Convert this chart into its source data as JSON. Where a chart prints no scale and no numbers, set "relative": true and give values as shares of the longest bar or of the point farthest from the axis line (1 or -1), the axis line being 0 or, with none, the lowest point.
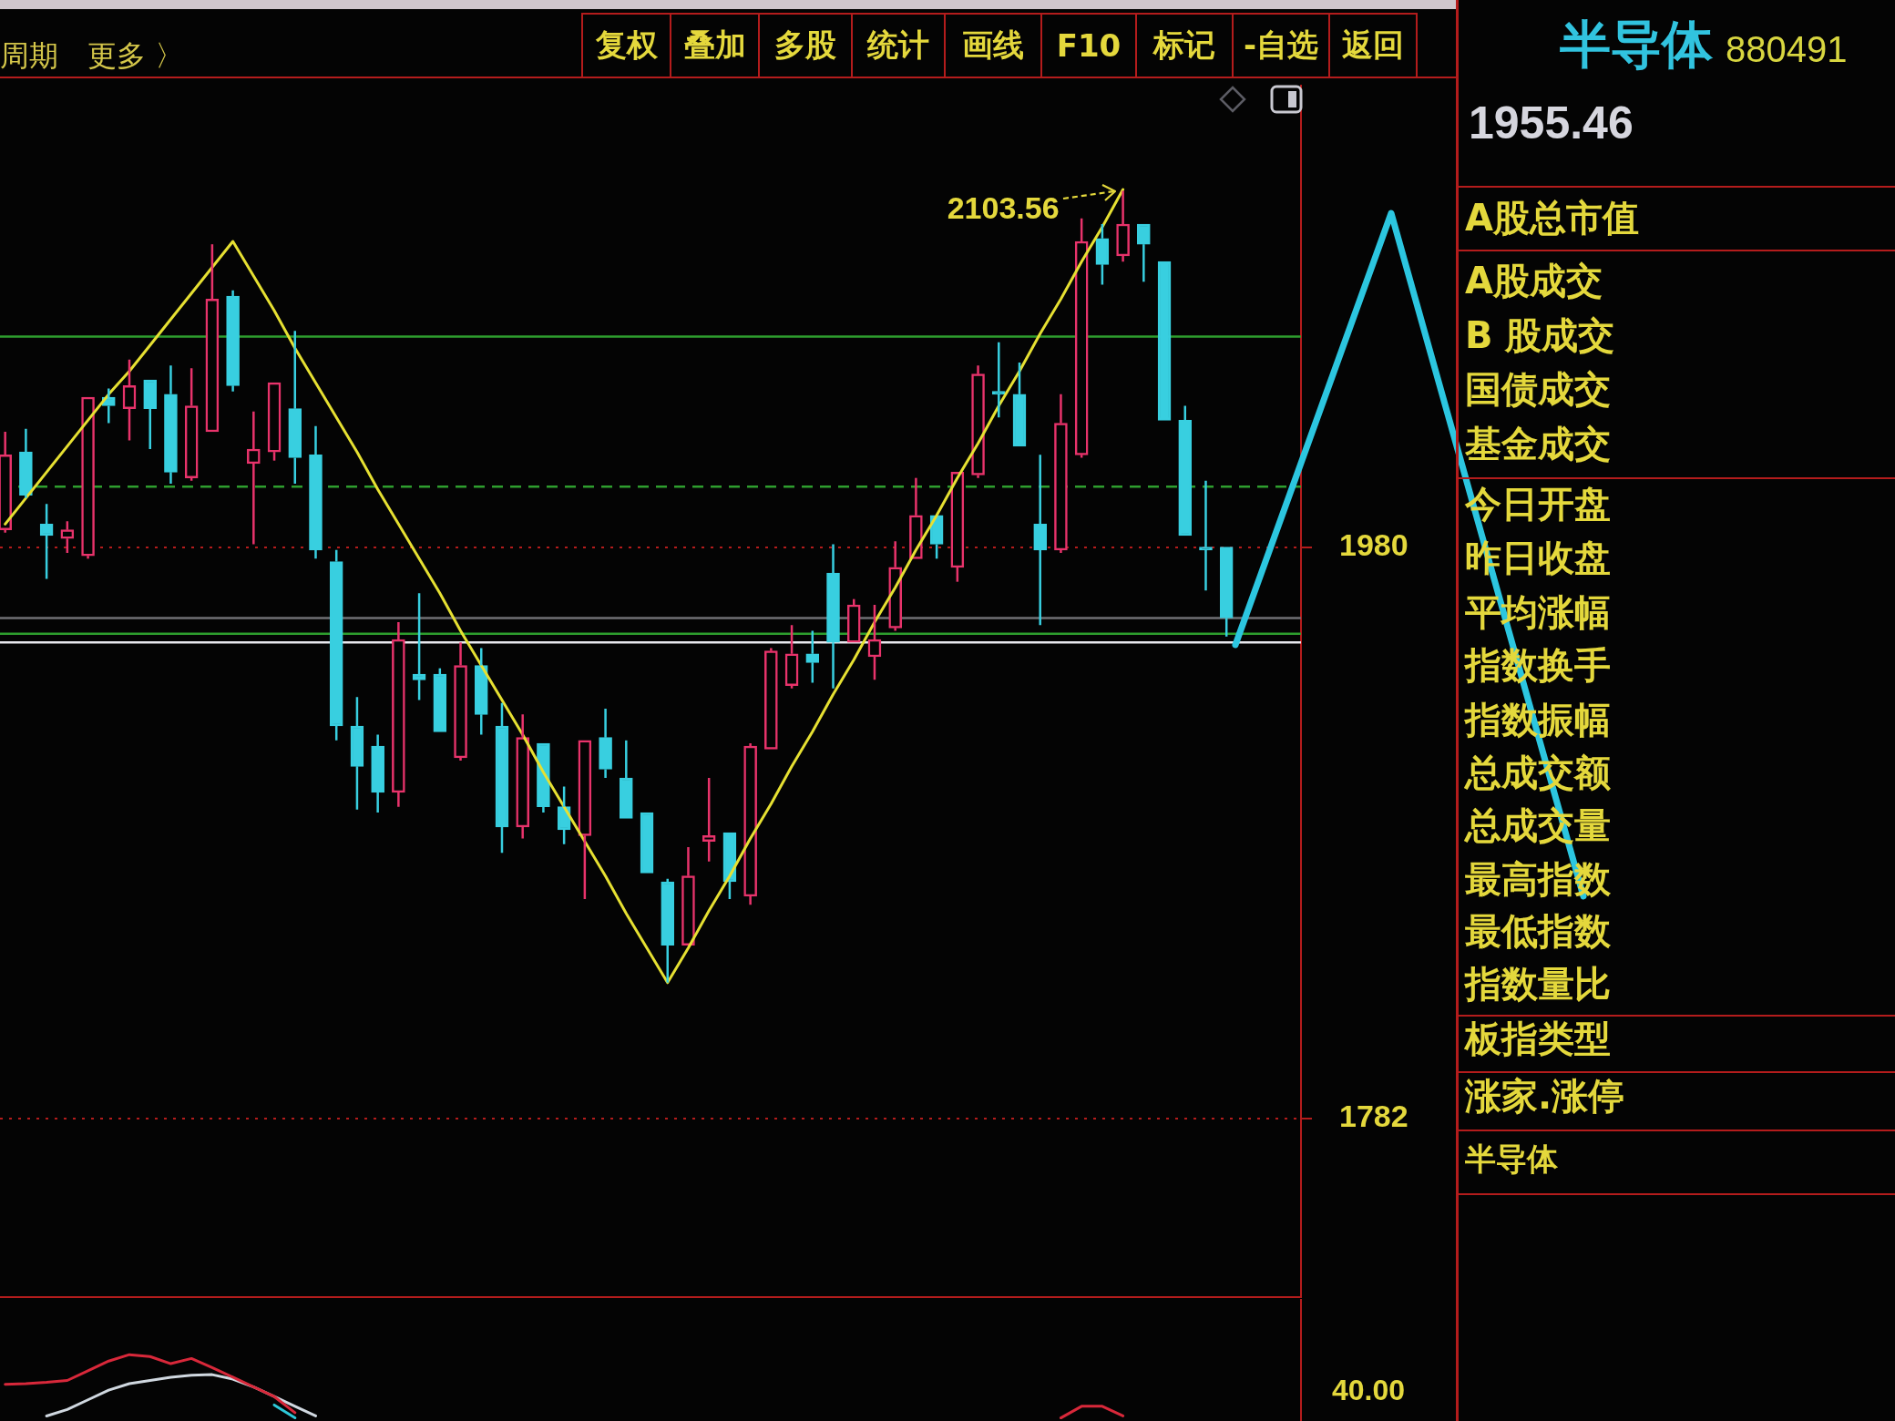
{
  "chart_data": [
    {
      "type": "candlestick",
      "categories": [
        null,
        null,
        null,
        null,
        null,
        null,
        null,
        null,
        null,
        null,
        null,
        null,
        null,
        null,
        null,
        null,
        null,
        null,
        null,
        null,
        null,
        null,
        null,
        null,
        null,
        null,
        null,
        null,
        null,
        null,
        null,
        null,
        null,
        null,
        null,
        null,
        null,
        null,
        null,
        null,
        null,
        null,
        null,
        null,
        null,
        null,
        null,
        null,
        null,
        null,
        null,
        null,
        null,
        null,
        null,
        null,
        null,
        null,
        null,
        null
      ],
      "ohlc": [
        [
          1986,
          2020,
          1985,
          2012
        ],
        [
          2013,
          2021,
          1997,
          1998
        ],
        [
          1988,
          1995,
          1969,
          1984
        ],
        [
          1983,
          1989,
          1978,
          1986
        ],
        [
          1977,
          2032,
          1976,
          2032
        ],
        [
          2032,
          2035,
          2023,
          2029
        ],
        [
          2028,
          2045,
          2017,
          2036
        ],
        [
          2038,
          2038,
          2014,
          2028
        ],
        [
          2033,
          2043,
          2002,
          2006
        ],
        [
          2004,
          2042,
          2003,
          2029
        ],
        [
          2020,
          2085,
          2020,
          2066
        ],
        [
          2067,
          2069,
          2034,
          2036
        ],
        [
          2009,
          2027,
          1981,
          2014
        ],
        [
          2013,
          2037,
          2010,
          2037
        ],
        [
          2028,
          2055,
          2002,
          2011
        ],
        [
          2012,
          2022,
          1976,
          1979
        ],
        [
          1975,
          1979,
          1913,
          1918
        ],
        [
          1918,
          1928,
          1889,
          1904
        ],
        [
          1911,
          1915,
          1888,
          1895
        ],
        [
          1895,
          1954,
          1890,
          1948
        ],
        [
          1936,
          1964,
          1927,
          1934
        ],
        [
          1936,
          1938,
          1916,
          1916
        ],
        [
          1907,
          1947,
          1906,
          1939
        ],
        [
          1939,
          1945,
          1915,
          1922
        ],
        [
          1918,
          1926,
          1874,
          1883
        ],
        [
          1883,
          1922,
          1879,
          1914
        ],
        [
          1912,
          1912,
          1888,
          1890
        ],
        [
          1890,
          1897,
          1877,
          1882
        ],
        [
          1880,
          1913,
          1858,
          1913
        ],
        [
          1914,
          1924,
          1900,
          1903
        ],
        [
          1900,
          1913,
          1886,
          1886
        ],
        [
          1888,
          1888,
          1867,
          1867
        ],
        [
          1864,
          1865,
          1829,
          1842
        ],
        [
          1842,
          1876,
          1842,
          1866
        ],
        [
          1878,
          1900,
          1871,
          1880
        ],
        [
          1881,
          1881,
          1858,
          1864
        ],
        [
          1859,
          1912,
          1856,
          1911
        ],
        [
          1910,
          1945,
          1910,
          1944
        ],
        [
          1932,
          1953,
          1931,
          1943
        ],
        [
          1943,
          1951,
          1933,
          1940
        ],
        [
          1971,
          1981,
          1931,
          1947
        ],
        [
          1947,
          1962,
          1947,
          1960
        ],
        [
          1942,
          1960,
          1934,
          1948
        ],
        [
          1952,
          1982,
          1951,
          1973
        ],
        [
          1976,
          2004,
          1976,
          1991
        ],
        [
          1991,
          1991,
          1976,
          1981
        ],
        [
          1973,
          2006,
          1968,
          2006
        ],
        [
          2005,
          2043,
          2004,
          2040
        ],
        [
          2034,
          2051,
          2025,
          2033
        ],
        [
          2033,
          2044,
          2015,
          2015
        ],
        [
          1988,
          2012,
          1953,
          1979
        ],
        [
          1979,
          2033,
          1978,
          2023
        ],
        [
          2012,
          2094,
          2011,
          2086
        ],
        [
          2087,
          2092,
          2071,
          2078
        ],
        [
          2081,
          2103.56,
          2079,
          2092
        ],
        [
          2092,
          2092,
          2072,
          2085
        ],
        [
          2079,
          2079,
          2024,
          2024
        ],
        [
          2024,
          2029,
          1984,
          1984
        ],
        [
          1980,
          2003,
          1965,
          1979
        ],
        [
          1980,
          1980,
          1949,
          1955.46
        ]
      ],
      "colors": [
        "#e8336b",
        "#38cfe0",
        "#38cfe0",
        "#e8336b",
        "#e8336b",
        "#38cfe0",
        "#e8336b",
        "#38cfe0",
        "#38cfe0",
        "#e8336b",
        "#e8336b",
        "#38cfe0",
        "#e8336b",
        "#e8336b",
        "#38cfe0",
        "#38cfe0",
        "#38cfe0",
        "#38cfe0",
        "#38cfe0",
        "#e8336b",
        "#38cfe0",
        "#38cfe0",
        "#e8336b",
        "#38cfe0",
        "#38cfe0",
        "#e8336b",
        "#38cfe0",
        "#38cfe0",
        "#e8336b",
        "#38cfe0",
        "#38cfe0",
        "#38cfe0",
        "#38cfe0",
        "#e8336b",
        "#e8336b",
        "#38cfe0",
        "#e8336b",
        "#e8336b",
        "#e8336b",
        "#38cfe0",
        "#38cfe0",
        "#e8336b",
        "#e8336b",
        "#e8336b",
        "#e8336b",
        "#38cfe0",
        "#e8336b",
        "#e8336b",
        "#38cfe0",
        "#38cfe0",
        "#38cfe0",
        "#e8336b",
        "#e8336b",
        "#38cfe0",
        "#e8336b",
        "#38cfe0",
        "#38cfe0",
        "#38cfe0",
        "#38cfe0",
        "#38cfe0"
      ],
      "series": [
        {
          "type": "line",
          "color": "#e6e032",
          "values": [
            1988,
            1997,
            2006,
            2015,
            2024,
            2033,
            2041,
            2050,
            2059,
            2068,
            2077,
            2086,
            2074,
            2062,
            2049,
            2037,
            2025,
            2013,
            2000,
            1988,
            1976,
            1964,
            1951,
            1939,
            1927,
            1915,
            1902,
            1890,
            1878,
            1866,
            1853,
            1841,
            1829,
            1841,
            1854,
            1866,
            1879,
            1891,
            1904,
            1916,
            1929,
            1941,
            1954,
            1966,
            1979,
            1991,
            2004,
            2016,
            2029,
            2041,
            2054,
            2066,
            2079,
            2091,
            2104,
            null,
            null,
            null,
            null,
            null
          ]
        }
      ],
      "ylim": [
        1720,
        2140
      ],
      "yticks": [
        1782,
        1980
      ],
      "grid": "y",
      "tick_labels": "y",
      "ref_lines": [
        {
          "axis": "y",
          "value": 2053,
          "color": "#2e9e2e"
        },
        {
          "axis": "y",
          "value": 2001,
          "color": "#2e9e2e",
          "line_style": "dashed"
        },
        {
          "axis": "y",
          "value": 1955.46,
          "color": "#707074"
        },
        {
          "axis": "y",
          "value": 1950,
          "color": "#2e9e2e"
        },
        {
          "axis": "y",
          "value": 1947,
          "color": "#e8e8ee"
        }
      ],
      "annotations": [
        "2103.56",
        "周期",
        "更多 〉",
        "复权",
        "叠加",
        "多股",
        "统计",
        "画线",
        "F10",
        "标记",
        "-自选",
        "返回",
        "半导体",
        "880491",
        "1955.46",
        "A股总市值",
        "A股成交",
        "B 股成交",
        "国债成交",
        "基金成交",
        "今日开盘",
        "昨日收盘",
        "平均涨幅",
        "指数换手",
        "指数振幅",
        "总成交额",
        "总成交量",
        "最高指数",
        "最低指数",
        "指数量比",
        "板指类型",
        "涨家.涨停",
        "半导体"
      ]
    },
    {
      "type": "line",
      "relative": true,
      "tick_labels": false,
      "categories": [
        null,
        null,
        null,
        null,
        null,
        null,
        null,
        null,
        null,
        null,
        null,
        null,
        null,
        null,
        null,
        null,
        null,
        null,
        null,
        null,
        null,
        null,
        null,
        null,
        null,
        null,
        null,
        null,
        null,
        null,
        null,
        null,
        null,
        null,
        null,
        null,
        null,
        null,
        null,
        null,
        null,
        null,
        null,
        null,
        null,
        null,
        null,
        null,
        null,
        null,
        null,
        null,
        null,
        null,
        null,
        null,
        null,
        null,
        null,
        null
      ],
      "series": [
        {
          "color": "#d8283a",
          "values": [
            0.54,
            0.55,
            0.57,
            0.6,
            0.75,
            0.9,
            1,
            0.97,
            0.86,
            0.94,
            0.8,
            0.65,
            0.5,
            0.35,
            0.1,
            null,
            null,
            null,
            null,
            null,
            null,
            null,
            null,
            null,
            null,
            null,
            null,
            null,
            null,
            null,
            null,
            null,
            null,
            null,
            null,
            null,
            null,
            null,
            null,
            null,
            null,
            null,
            null,
            null,
            null,
            null,
            null,
            null,
            null,
            null,
            null,
            0.02,
            0.2,
            0.2,
            0.05,
            null,
            null,
            null,
            null,
            null
          ]
        },
        {
          "color": "#d0d8e0",
          "values": [
            null,
            null,
            0.05,
            0.15,
            0.3,
            0.45,
            0.55,
            0.6,
            0.65,
            0.68,
            0.69,
            0.62,
            0.5,
            0.35,
            0.2,
            0.05,
            null,
            null,
            null,
            null,
            null,
            null,
            null,
            null,
            null,
            null,
            null,
            null,
            null,
            null,
            null,
            null,
            null,
            null,
            null,
            null,
            null,
            null,
            null,
            null,
            null,
            null,
            null,
            null,
            null,
            null,
            null,
            null,
            null,
            null,
            null,
            null,
            null,
            null,
            null,
            null,
            null,
            null,
            null,
            null
          ]
        },
        {
          "color": "#2ec8d8",
          "values": [
            null,
            null,
            null,
            null,
            null,
            null,
            null,
            null,
            null,
            null,
            null,
            null,
            null,
            0.22,
            0.02,
            null,
            null,
            null,
            null,
            null,
            null,
            null,
            null,
            null,
            null,
            null,
            null,
            null,
            null,
            null,
            null,
            null,
            null,
            null,
            null,
            null,
            null,
            null,
            null,
            null,
            null,
            null,
            null,
            null,
            null,
            null,
            null,
            null,
            null,
            null,
            null,
            null,
            null,
            null,
            null,
            null,
            null,
            null,
            null,
            null
          ]
        }
      ],
      "annotations": [
        "40.00"
      ]
    }
  ]
}
